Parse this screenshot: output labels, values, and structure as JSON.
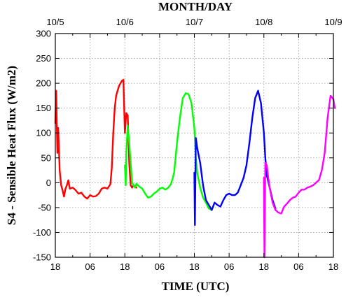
{
  "chart_data": {
    "type": "line",
    "title": "MONTH/DAY",
    "xlabel": "TIME (UTC)",
    "ylabel": "S4 - Sensible Heat Flux (W/m2)",
    "ylim": [
      -150,
      300
    ],
    "yticks": [
      -150,
      -100,
      -50,
      0,
      50,
      100,
      150,
      200,
      250,
      300
    ],
    "grid": true,
    "xlim_hours": [
      0,
      96
    ],
    "x_unit": "hours since 10/4 18 UTC",
    "bottom_ticks": [
      {
        "hour": 0,
        "label": "18"
      },
      {
        "hour": 12,
        "label": "06"
      },
      {
        "hour": 24,
        "label": "18"
      },
      {
        "hour": 36,
        "label": "06"
      },
      {
        "hour": 48,
        "label": "18"
      },
      {
        "hour": 60,
        "label": "06"
      },
      {
        "hour": 72,
        "label": "18"
      },
      {
        "hour": 84,
        "label": "06"
      },
      {
        "hour": 96,
        "label": "18"
      }
    ],
    "top_ticks": [
      {
        "hour": 0,
        "label": "10/5"
      },
      {
        "hour": 24,
        "label": "10/6"
      },
      {
        "hour": 48,
        "label": "10/7"
      },
      {
        "hour": 72,
        "label": "10/8"
      },
      {
        "hour": 96,
        "label": "10/9"
      }
    ],
    "series": [
      {
        "color": "#ff0000",
        "points": [
          [
            0,
            120
          ],
          [
            0.3,
            185
          ],
          [
            0.7,
            60
          ],
          [
            1,
            110
          ],
          [
            1.5,
            25
          ],
          [
            2,
            -5
          ],
          [
            2.5,
            -15
          ],
          [
            3,
            -28
          ],
          [
            3.5,
            -12
          ],
          [
            4,
            -5
          ],
          [
            4.5,
            5
          ],
          [
            5,
            -12
          ],
          [
            6,
            -10
          ],
          [
            7,
            -15
          ],
          [
            8,
            -22
          ],
          [
            9,
            -20
          ],
          [
            10,
            -28
          ],
          [
            11,
            -32
          ],
          [
            12,
            -25
          ],
          [
            13,
            -28
          ],
          [
            14,
            -27
          ],
          [
            15,
            -22
          ],
          [
            16,
            -12
          ],
          [
            17,
            -10
          ],
          [
            18,
            -12
          ],
          [
            19,
            -3
          ],
          [
            19.5,
            30
          ],
          [
            20,
            100
          ],
          [
            20.5,
            150
          ],
          [
            21,
            175
          ],
          [
            22,
            195
          ],
          [
            23,
            205
          ],
          [
            23.5,
            207
          ],
          [
            24,
            100
          ],
          [
            24.5,
            140
          ],
          [
            25,
            135
          ],
          [
            25.5,
            40
          ],
          [
            26,
            -5
          ],
          [
            26.5,
            -10
          ],
          [
            27,
            -5
          ],
          [
            28,
            -10
          ]
        ]
      },
      {
        "color": "#00ff00",
        "points": [
          [
            24,
            35
          ],
          [
            24.3,
            -5
          ],
          [
            24.5,
            60
          ],
          [
            25,
            115
          ],
          [
            25.5,
            80
          ],
          [
            26,
            40
          ],
          [
            26.5,
            0
          ],
          [
            27,
            -5
          ],
          [
            27.5,
            -10
          ],
          [
            28,
            -2
          ],
          [
            29,
            -8
          ],
          [
            30,
            -12
          ],
          [
            31,
            -22
          ],
          [
            32,
            -30
          ],
          [
            33,
            -28
          ],
          [
            34,
            -22
          ],
          [
            35,
            -18
          ],
          [
            36,
            -12
          ],
          [
            37,
            -10
          ],
          [
            38,
            -14
          ],
          [
            39,
            -10
          ],
          [
            40,
            -2
          ],
          [
            41,
            20
          ],
          [
            42,
            80
          ],
          [
            43,
            130
          ],
          [
            44,
            170
          ],
          [
            45,
            180
          ],
          [
            46,
            178
          ],
          [
            47,
            160
          ],
          [
            48,
            110
          ],
          [
            48.5,
            50
          ],
          [
            49,
            20
          ],
          [
            50,
            -10
          ],
          [
            51,
            -30
          ],
          [
            52,
            -40
          ],
          [
            53,
            -52
          ],
          [
            54,
            -55
          ]
        ]
      },
      {
        "color": "#0000ff",
        "points": [
          [
            48,
            20
          ],
          [
            48.2,
            -85
          ],
          [
            48.5,
            90
          ],
          [
            49,
            70
          ],
          [
            50,
            40
          ],
          [
            51,
            -5
          ],
          [
            52,
            -35
          ],
          [
            53,
            -45
          ],
          [
            54,
            -55
          ],
          [
            55,
            -40
          ],
          [
            56,
            -45
          ],
          [
            57,
            -48
          ],
          [
            58,
            -35
          ],
          [
            59,
            -25
          ],
          [
            60,
            -22
          ],
          [
            61,
            -25
          ],
          [
            62,
            -25
          ],
          [
            63,
            -20
          ],
          [
            64,
            -5
          ],
          [
            65,
            10
          ],
          [
            66,
            35
          ],
          [
            67,
            80
          ],
          [
            68,
            130
          ],
          [
            69,
            170
          ],
          [
            70,
            185
          ],
          [
            71,
            160
          ],
          [
            72,
            100
          ],
          [
            72.5,
            50
          ],
          [
            73,
            15
          ],
          [
            74,
            -10
          ],
          [
            75,
            -35
          ],
          [
            76,
            -52
          ]
        ]
      },
      {
        "color": "#ff00ff",
        "points": [
          [
            72,
            10
          ],
          [
            72.2,
            -150
          ],
          [
            72.5,
            40
          ],
          [
            73,
            35
          ],
          [
            73.5,
            10
          ],
          [
            74,
            -10
          ],
          [
            75,
            -40
          ],
          [
            76,
            -55
          ],
          [
            77,
            -60
          ],
          [
            78,
            -62
          ],
          [
            79,
            -48
          ],
          [
            80,
            -42
          ],
          [
            81,
            -35
          ],
          [
            82,
            -30
          ],
          [
            83,
            -28
          ],
          [
            84,
            -20
          ],
          [
            85,
            -14
          ],
          [
            86,
            -14
          ],
          [
            87,
            -10
          ],
          [
            88,
            -8
          ],
          [
            89,
            -5
          ],
          [
            90,
            0
          ],
          [
            91,
            5
          ],
          [
            92,
            25
          ],
          [
            93,
            60
          ],
          [
            94,
            130
          ],
          [
            95,
            175
          ],
          [
            96,
            168
          ],
          [
            96.5,
            150
          ]
        ]
      }
    ]
  }
}
